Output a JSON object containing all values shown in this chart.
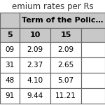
{
  "title": "emium rates per Rs",
  "span_header": "Term of the Polic…",
  "col_headers": [
    "5",
    "10",
    "15"
  ],
  "rows": [
    [
      "09",
      "2.09",
      "2.09"
    ],
    [
      "31",
      "2.37",
      "2.65"
    ],
    [
      "48",
      "4.10",
      "5.07"
    ],
    [
      "91",
      "9.44",
      "11.21"
    ]
  ],
  "header_bg": "#c8c8c8",
  "row_bg": "#ffffff",
  "border_color": "#666666",
  "text_color": "#000000",
  "title_color": "#333333",
  "title_fontsize": 8.5,
  "header_fontsize": 8,
  "cell_fontsize": 7.5
}
